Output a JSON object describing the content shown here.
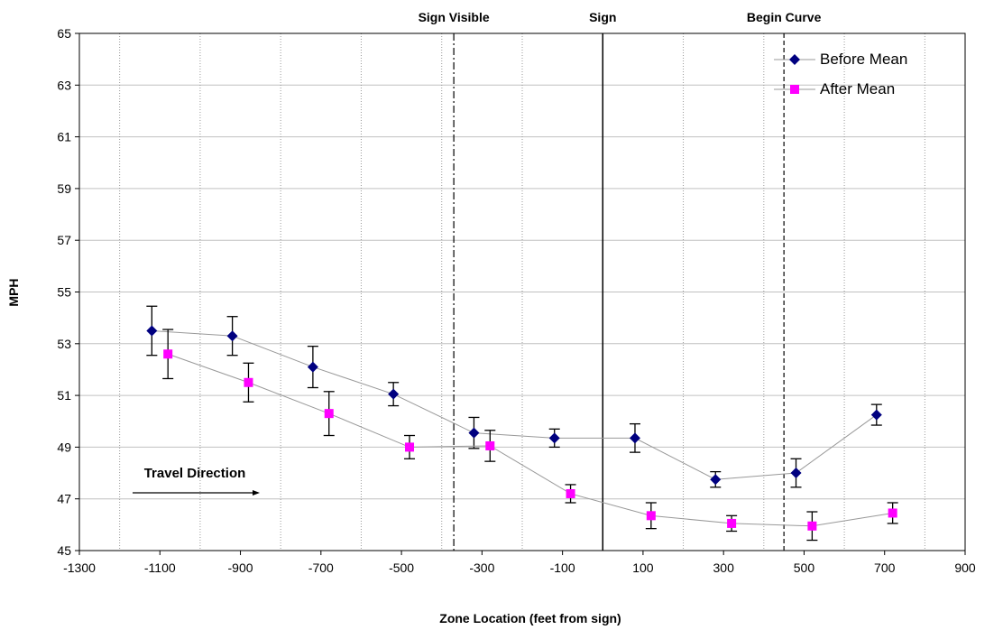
{
  "chart_data": {
    "type": "scatter",
    "xlabel": "Zone Location (feet from sign)",
    "ylabel": "MPH",
    "xlim": [
      -1300,
      900
    ],
    "ylim": [
      45,
      65
    ],
    "x_ticks": [
      -1300,
      -1100,
      -900,
      -700,
      -500,
      -300,
      -100,
      100,
      300,
      500,
      700,
      900
    ],
    "y_ticks": [
      45,
      47,
      49,
      51,
      53,
      55,
      57,
      59,
      61,
      63,
      65
    ],
    "minor_grid_x": [
      -1200,
      -1000,
      -800,
      -600,
      -400,
      -200,
      200,
      400,
      600,
      800
    ],
    "grid": true,
    "legend_position": "top-right",
    "reference_lines": [
      {
        "x": -370,
        "label": "Sign Visible",
        "style": "dash-dot"
      },
      {
        "x": 0,
        "label": "Sign",
        "style": "solid"
      },
      {
        "x": 450,
        "label": "Begin Curve",
        "style": "dashed"
      }
    ],
    "annotation": {
      "text": "Travel Direction",
      "arrow": "right"
    },
    "series": [
      {
        "name": "Before Mean",
        "marker": "diamond",
        "color": "#000080",
        "x": [
          -1120,
          -920,
          -720,
          -520,
          -320,
          -120,
          80,
          280,
          480,
          680
        ],
        "y": [
          53.5,
          53.3,
          52.1,
          51.05,
          49.55,
          49.35,
          49.35,
          47.75,
          48.0,
          50.25
        ],
        "error": [
          0.95,
          0.75,
          0.8,
          0.45,
          0.6,
          0.35,
          0.55,
          0.3,
          0.55,
          0.4
        ]
      },
      {
        "name": "After Mean",
        "marker": "square",
        "color": "#ff00ff",
        "x": [
          -1080,
          -880,
          -680,
          -480,
          -280,
          -80,
          120,
          320,
          520,
          720
        ],
        "y": [
          52.6,
          51.5,
          50.3,
          49.0,
          49.05,
          47.2,
          46.35,
          46.05,
          45.95,
          46.45
        ],
        "error": [
          0.95,
          0.75,
          0.85,
          0.45,
          0.6,
          0.35,
          0.5,
          0.3,
          0.55,
          0.4
        ]
      }
    ]
  }
}
